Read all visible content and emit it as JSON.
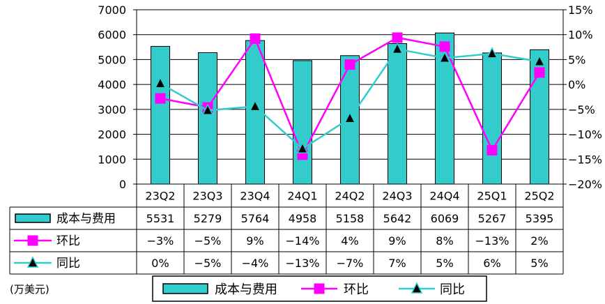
{
  "chart_data": {
    "type": "bar",
    "categories": [
      "23Q2",
      "23Q3",
      "23Q4",
      "24Q1",
      "24Q2",
      "24Q3",
      "24Q4",
      "25Q1",
      "25Q2"
    ],
    "left_axis": {
      "min": 0,
      "max": 7000,
      "ticks": [
        "0",
        "1000",
        "2000",
        "3000",
        "4000",
        "5000",
        "6000",
        "7000"
      ]
    },
    "right_axis": {
      "min": -20,
      "max": 15,
      "ticks": [
        "-20%",
        "-15%",
        "-10%",
        "-5%",
        "0%",
        "5%",
        "10%",
        "15%"
      ]
    },
    "unit_note": "(万美元)",
    "series": [
      {
        "name": "成本与费用",
        "kind": "bar",
        "axis": "left",
        "color": "#33CCCC",
        "values": [
          5531,
          5279,
          5764,
          4958,
          5158,
          5642,
          6069,
          5267,
          5395
        ],
        "labels": [
          "5531",
          "5279",
          "5764",
          "4958",
          "5158",
          "5642",
          "6069",
          "5267",
          "5395"
        ]
      },
      {
        "name": "环比",
        "kind": "line",
        "axis": "right",
        "marker": "square",
        "color": "#FF00FF",
        "values": [
          -2.8,
          -4.6,
          9.2,
          -14.1,
          4.0,
          9.4,
          7.6,
          -13.2,
          2.4
        ],
        "labels": [
          "−3%",
          "−5%",
          "9%",
          "−14%",
          "4%",
          "9%",
          "8%",
          "−13%",
          "2%"
        ]
      },
      {
        "name": "同比",
        "kind": "line",
        "axis": "right",
        "marker": "triangle",
        "color": "#33CCCC",
        "values": [
          0.2,
          -5.2,
          -4.4,
          -12.9,
          -6.8,
          7.1,
          5.3,
          6.2,
          4.6
        ],
        "labels": [
          "0%",
          "−5%",
          "−4%",
          "−13%",
          "−7%",
          "7%",
          "5%",
          "6%",
          "5%"
        ]
      }
    ]
  }
}
